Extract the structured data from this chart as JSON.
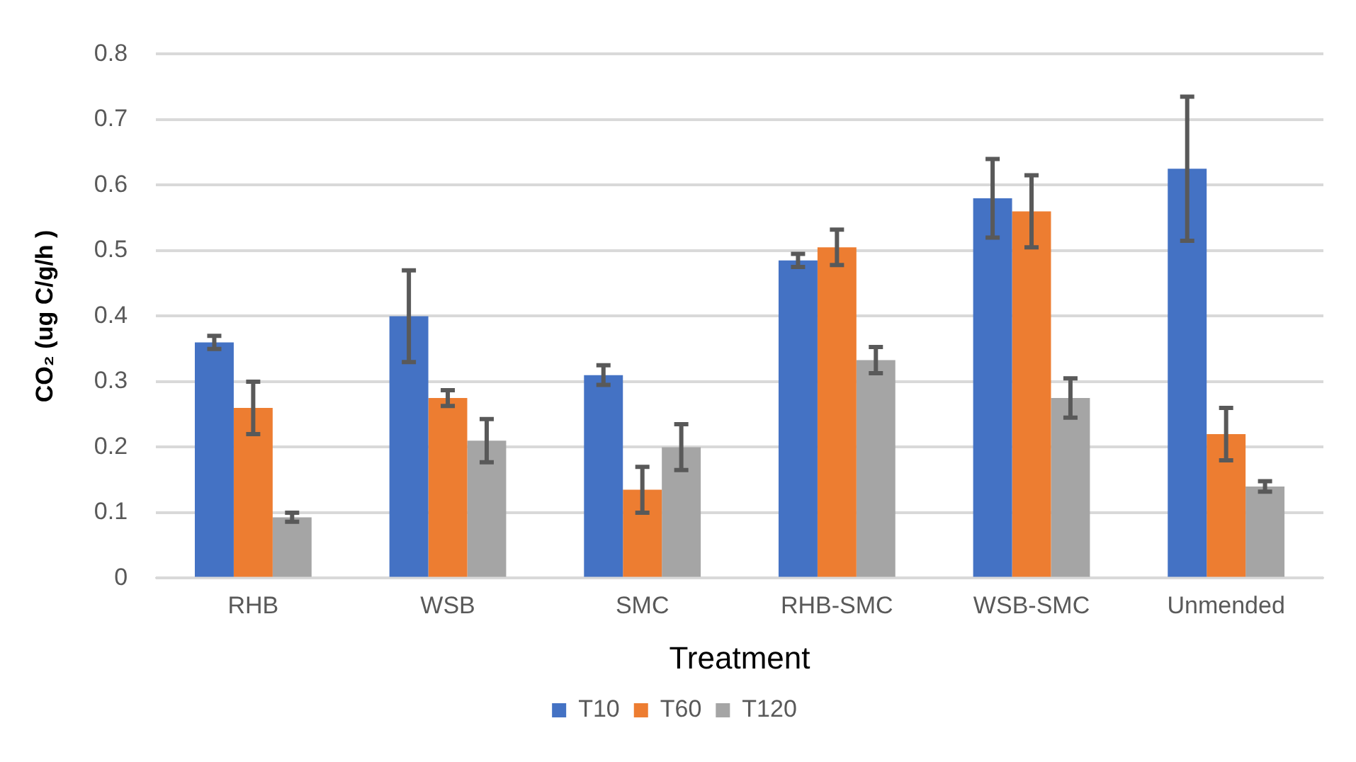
{
  "chart_data": {
    "type": "bar",
    "xlabel": "Treatment",
    "ylabel": "CO₂ (ug C/g/h )",
    "categories": [
      "RHB",
      "WSB",
      "SMC",
      "RHB-SMC",
      "WSB-SMC",
      "Unmended"
    ],
    "series": [
      {
        "name": "T10",
        "color": "#4472c4",
        "values": [
          0.36,
          0.4,
          0.31,
          0.485,
          0.58,
          0.625
        ],
        "errors": [
          0.01,
          0.07,
          0.015,
          0.01,
          0.06,
          0.11
        ]
      },
      {
        "name": "T60",
        "color": "#ed7d31",
        "values": [
          0.26,
          0.275,
          0.135,
          0.505,
          0.56,
          0.22
        ],
        "errors": [
          0.04,
          0.012,
          0.035,
          0.027,
          0.055,
          0.04
        ]
      },
      {
        "name": "T120",
        "color": "#a5a5a5",
        "values": [
          0.093,
          0.21,
          0.2,
          0.333,
          0.275,
          0.14
        ],
        "errors": [
          0.007,
          0.033,
          0.035,
          0.02,
          0.03,
          0.008
        ]
      }
    ],
    "ylim": [
      0,
      0.8
    ],
    "yticks": [
      0,
      0.1,
      0.2,
      0.3,
      0.4,
      0.5,
      0.6,
      0.7,
      0.8
    ],
    "grid": "y",
    "legend": "bottom"
  }
}
